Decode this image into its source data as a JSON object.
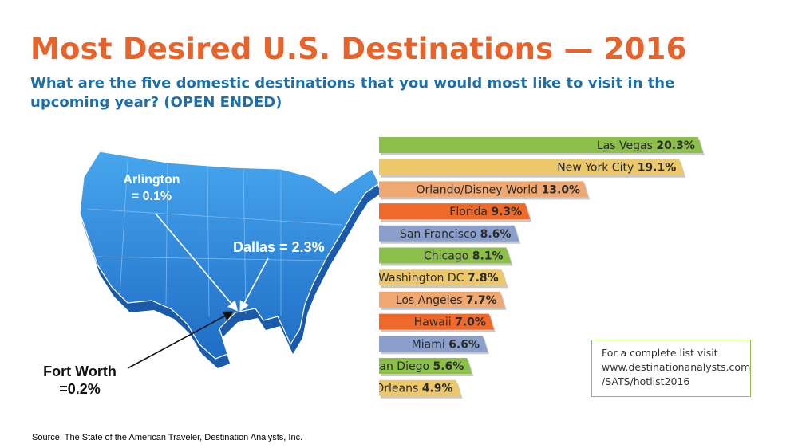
{
  "chart_data": {
    "type": "bar",
    "orientation": "horizontal",
    "title": "Most Desired U.S. Destinations — 2016",
    "subtitle": "What are the five domestic destinations that you would most like to visit in the upcoming year? (OPEN ENDED)",
    "categories": [
      "Las Vegas",
      "New York City",
      "Orlando/Disney World",
      "Florida",
      "San Francisco",
      "Chicago",
      "Washington DC",
      "Los Angeles",
      "Hawaii",
      "Miami",
      "San Diego",
      "New Orleans"
    ],
    "values": [
      20.3,
      19.1,
      13.0,
      9.3,
      8.6,
      8.1,
      7.8,
      7.7,
      7.0,
      6.6,
      5.6,
      4.9
    ],
    "value_labels": [
      "20.3%",
      "19.1%",
      "13.0%",
      "9.3%",
      "8.6%",
      "8.1%",
      "7.8%",
      "7.7%",
      "7.0%",
      "6.6%",
      "5.6%",
      "4.9%"
    ],
    "bar_colors": [
      "#8cc04a",
      "#edc86a",
      "#f0a872",
      "#ef6a2a",
      "#8a9fcc",
      "#8cc04a",
      "#edc86a",
      "#f0a872",
      "#ef6a2a",
      "#8a9fcc",
      "#8cc04a",
      "#edc86a"
    ],
    "xlabel": "",
    "ylabel": "",
    "grid": false,
    "legend": "none"
  },
  "map": {
    "icon": "usa-map-icon",
    "color": "#2e86d6",
    "annotations": {
      "arlington": "Arlington\n= 0.1%",
      "dallas": "Dallas = 2.3%",
      "fort_worth": "Fort Worth\n=0.2%"
    }
  },
  "note": {
    "line1": "For a complete list visit",
    "line2": "www.destinationanalysts.com",
    "line3": "/SATS/hotlist2016"
  },
  "source": "Source: The State of the American Traveler, Destination Analysts, Inc."
}
